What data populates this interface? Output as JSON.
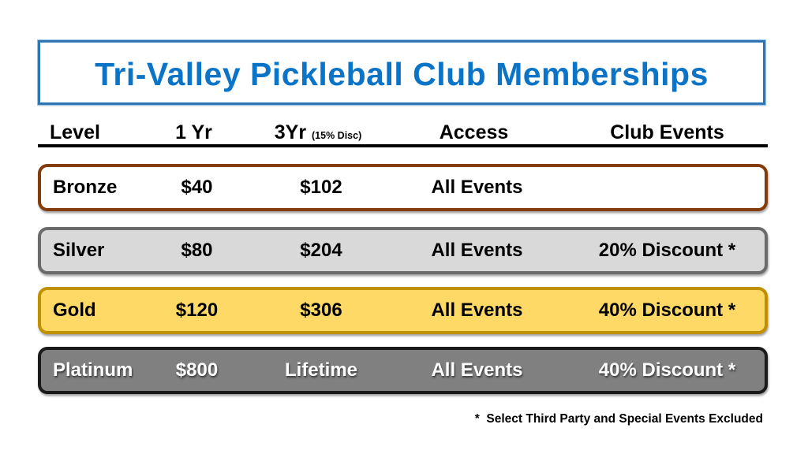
{
  "title": {
    "text": "Tri-Valley Pickleball Club Memberships"
  },
  "colors": {
    "title-text": "#0B74C6",
    "title-border": "#2E75B6",
    "header-underline": "#000000",
    "bronze-bg": "#FFFFFF",
    "bronze-border": "#843C0C",
    "silver-bg": "#D9D9D9",
    "silver-border": "#6B6B6B",
    "gold-bg": "#FFD966",
    "gold-border": "#BF9000",
    "platinum-bg": "#808080",
    "platinum-border": "#1A1A1A"
  },
  "table": {
    "headers": [
      "Level",
      "1 Yr",
      "3Yr",
      "Access",
      "Club Events"
    ],
    "header_note": "(15% Disc)",
    "rows": [
      {
        "level": "Bronze",
        "yr1": "$40",
        "yr3": "$102",
        "access": "All Events",
        "club": ""
      },
      {
        "level": "Silver",
        "yr1": "$80",
        "yr3": "$204",
        "access": "All Events",
        "club": "20% Discount *"
      },
      {
        "level": "Gold",
        "yr1": "$120",
        "yr3": "$306",
        "access": "All Events",
        "club": "40% Discount *"
      },
      {
        "level": "Platinum",
        "yr1": "$800",
        "yr3": "Lifetime",
        "access": "All Events",
        "club": "40% Discount *"
      }
    ]
  },
  "footnote": {
    "text": "*  Select Third Party and Special Events Excluded"
  }
}
